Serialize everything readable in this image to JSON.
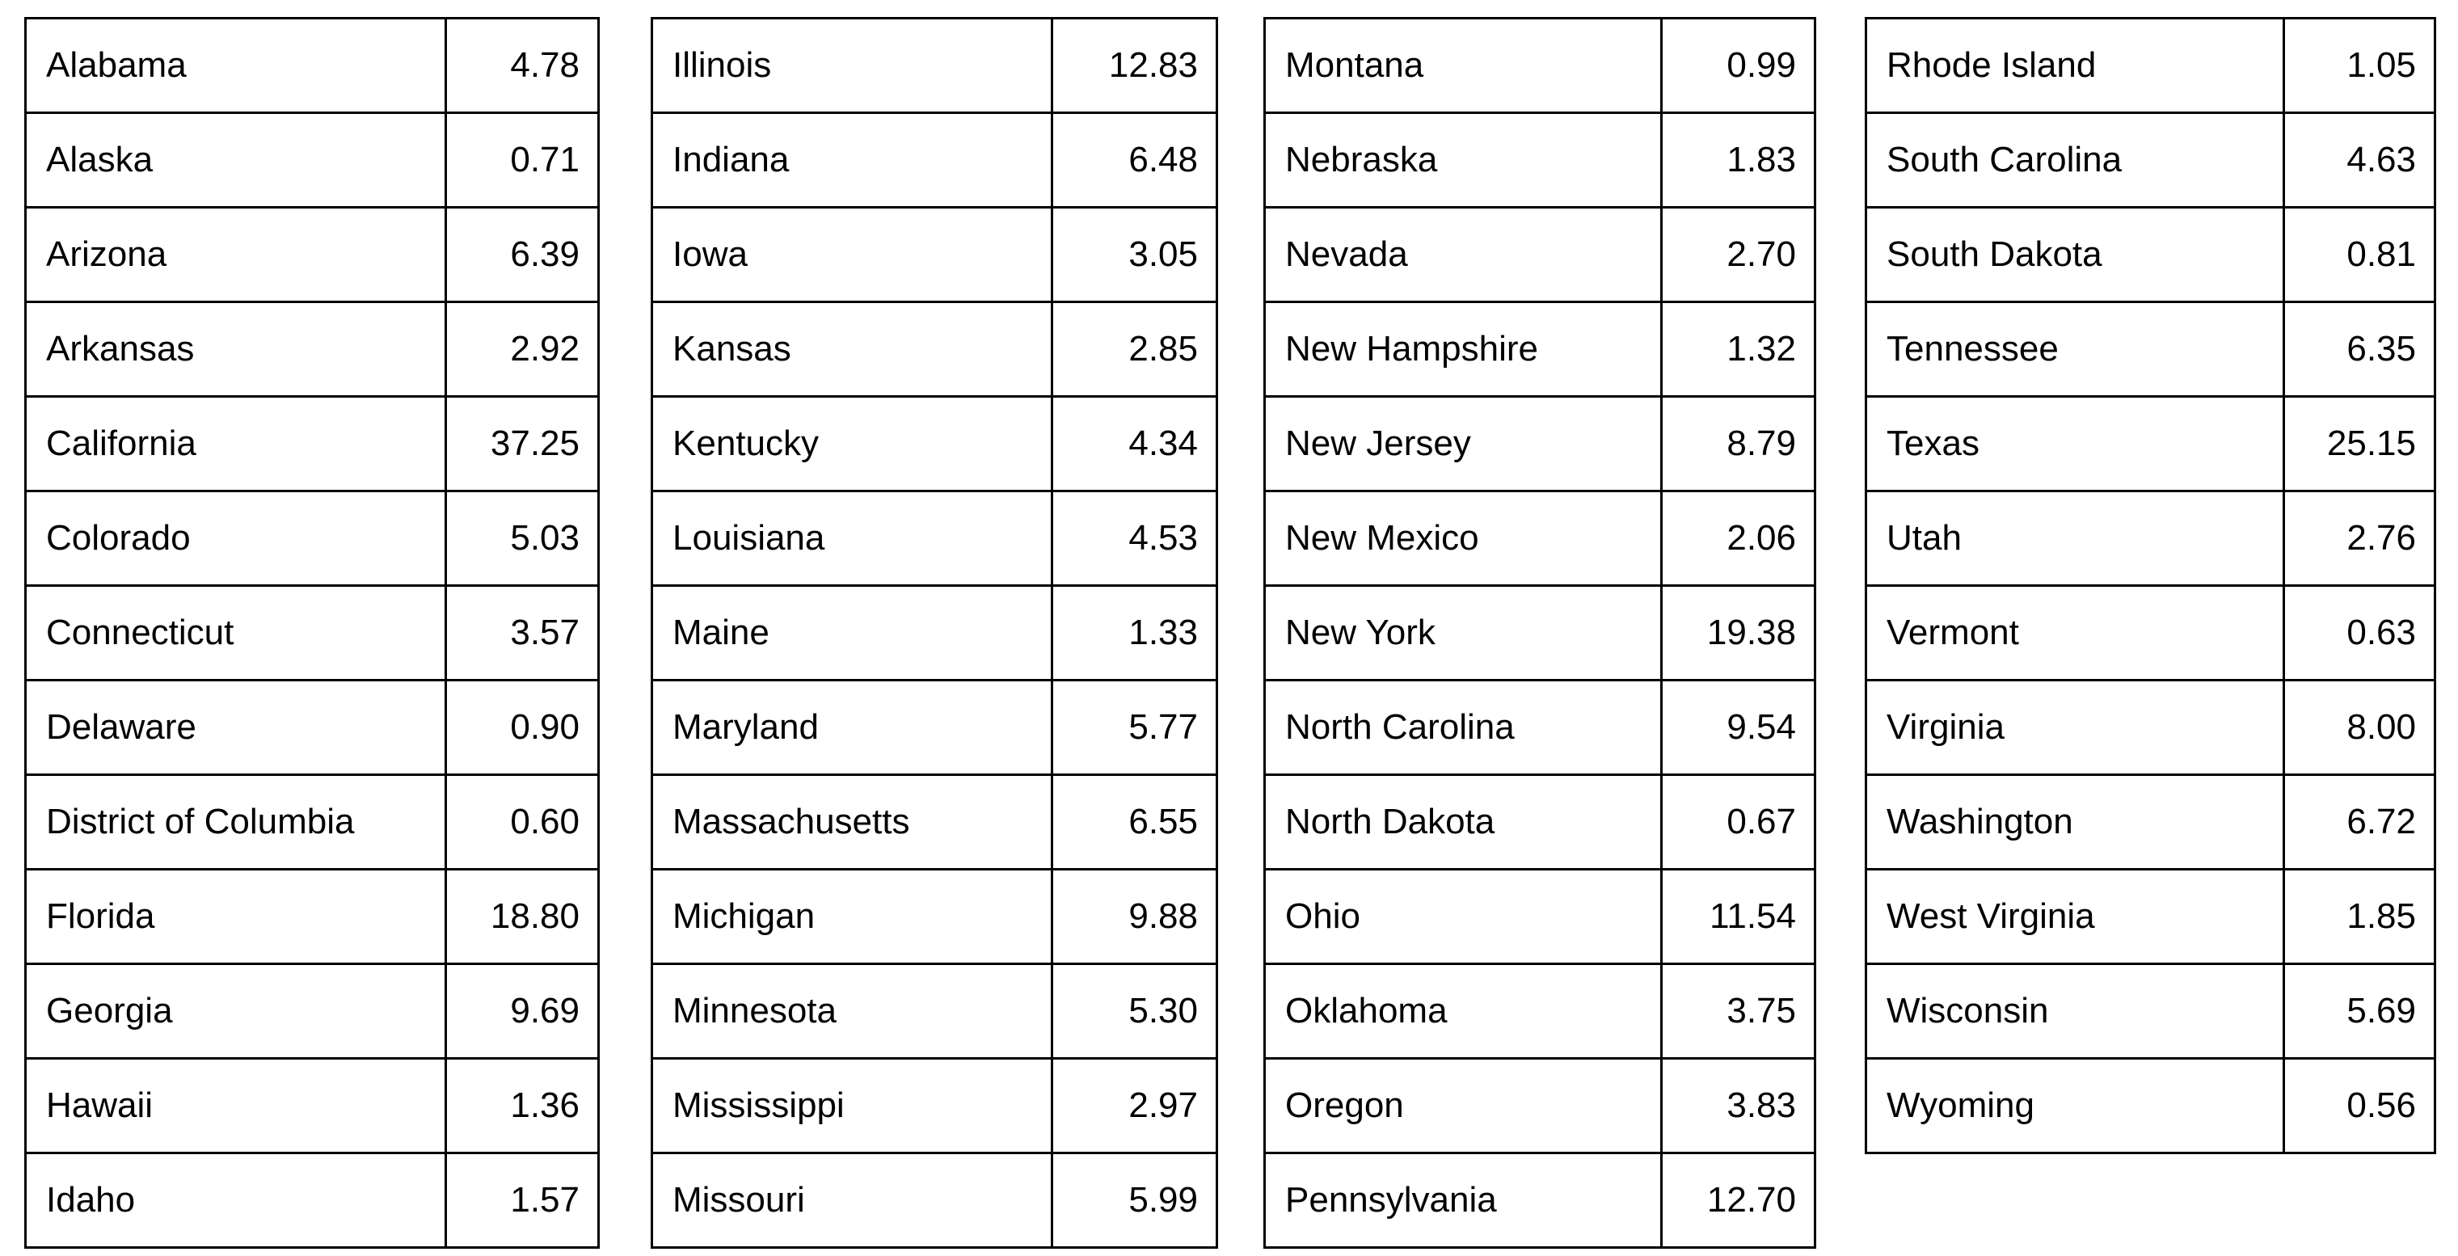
{
  "chart_data": {
    "type": "table",
    "description_visible_text_only": "Four side-by-side two-column tables listing U.S. states (plus District of Columbia) in alphabetical order with numeric values",
    "tables": [
      {
        "rows": [
          {
            "state": "Alabama",
            "value": "4.78"
          },
          {
            "state": "Alaska",
            "value": "0.71"
          },
          {
            "state": "Arizona",
            "value": "6.39"
          },
          {
            "state": "Arkansas",
            "value": "2.92"
          },
          {
            "state": "California",
            "value": "37.25"
          },
          {
            "state": "Colorado",
            "value": "5.03"
          },
          {
            "state": "Connecticut",
            "value": "3.57"
          },
          {
            "state": "Delaware",
            "value": "0.90"
          },
          {
            "state": "District of Columbia",
            "value": "0.60"
          },
          {
            "state": "Florida",
            "value": "18.80"
          },
          {
            "state": "Georgia",
            "value": "9.69"
          },
          {
            "state": "Hawaii",
            "value": "1.36"
          },
          {
            "state": "Idaho",
            "value": "1.57"
          }
        ]
      },
      {
        "rows": [
          {
            "state": "Illinois",
            "value": "12.83"
          },
          {
            "state": "Indiana",
            "value": "6.48"
          },
          {
            "state": "Iowa",
            "value": "3.05"
          },
          {
            "state": "Kansas",
            "value": "2.85"
          },
          {
            "state": "Kentucky",
            "value": "4.34"
          },
          {
            "state": "Louisiana",
            "value": "4.53"
          },
          {
            "state": "Maine",
            "value": "1.33"
          },
          {
            "state": "Maryland",
            "value": "5.77"
          },
          {
            "state": "Massachusetts",
            "value": "6.55"
          },
          {
            "state": "Michigan",
            "value": "9.88"
          },
          {
            "state": "Minnesota",
            "value": "5.30"
          },
          {
            "state": "Mississippi",
            "value": "2.97"
          },
          {
            "state": "Missouri",
            "value": "5.99"
          }
        ]
      },
      {
        "rows": [
          {
            "state": "Montana",
            "value": "0.99"
          },
          {
            "state": "Nebraska",
            "value": "1.83"
          },
          {
            "state": "Nevada",
            "value": "2.70"
          },
          {
            "state": "New Hampshire",
            "value": "1.32"
          },
          {
            "state": "New Jersey",
            "value": "8.79"
          },
          {
            "state": "New Mexico",
            "value": "2.06"
          },
          {
            "state": "New York",
            "value": "19.38"
          },
          {
            "state": "North Carolina",
            "value": "9.54"
          },
          {
            "state": "North Dakota",
            "value": "0.67"
          },
          {
            "state": "Ohio",
            "value": "11.54"
          },
          {
            "state": "Oklahoma",
            "value": "3.75"
          },
          {
            "state": "Oregon",
            "value": "3.83"
          },
          {
            "state": "Pennsylvania",
            "value": "12.70"
          }
        ]
      },
      {
        "rows": [
          {
            "state": "Rhode Island",
            "value": "1.05"
          },
          {
            "state": "South Carolina",
            "value": "4.63"
          },
          {
            "state": "South Dakota",
            "value": "0.81"
          },
          {
            "state": "Tennessee",
            "value": "6.35"
          },
          {
            "state": "Texas",
            "value": "25.15"
          },
          {
            "state": "Utah",
            "value": "2.76"
          },
          {
            "state": "Vermont",
            "value": "0.63"
          },
          {
            "state": "Virginia",
            "value": "8.00"
          },
          {
            "state": "Washington",
            "value": "6.72"
          },
          {
            "state": "West Virginia",
            "value": "1.85"
          },
          {
            "state": "Wisconsin",
            "value": "5.69"
          },
          {
            "state": "Wyoming",
            "value": "0.56"
          }
        ]
      }
    ],
    "layout_hints": {
      "columns_per_table": 2,
      "headers_visible": false,
      "border_color": "#000000",
      "background_color": "#ffffff",
      "text_color": "#000000"
    }
  }
}
